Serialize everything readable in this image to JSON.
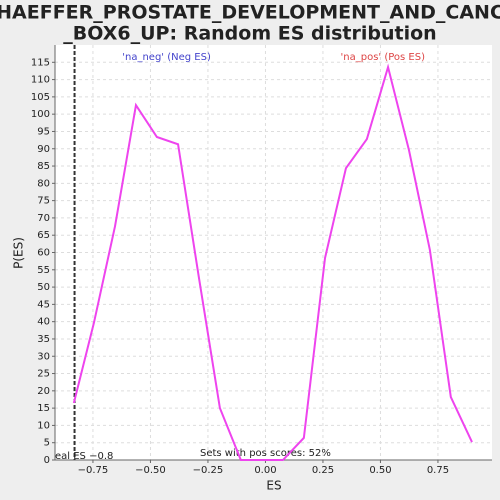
{
  "chart_data": {
    "type": "line",
    "title": [
      "SCHAEFFER_PROSTATE_DEVELOPMENT_AND_CANCER",
      "_BOX6_UP: Random ES distribution"
    ],
    "x_label": "ES",
    "y_label": "P(ES)",
    "x": [
      -0.833,
      -0.746,
      -0.654,
      -0.563,
      -0.472,
      -0.38,
      -0.289,
      -0.198,
      -0.107,
      -0.015,
      0.076,
      0.167,
      0.259,
      0.35,
      0.441,
      0.533,
      0.624,
      0.715,
      0.806,
      0.898
    ],
    "series": [
      {
        "name": "P(ES)",
        "color": "#ee44ee",
        "values": [
          16.5,
          39.6,
          67.6,
          102.6,
          93.4,
          91.3,
          52.6,
          15,
          0,
          0,
          0,
          6.4,
          58.4,
          84.4,
          92.8,
          113.6,
          89.6,
          60.7,
          18.2,
          5.2
        ]
      }
    ],
    "xlim": [
      -0.915,
      0.985
    ],
    "ylim": [
      0,
      120
    ],
    "xticks": [
      {
        "value": -0.75,
        "label": "−0.75"
      },
      {
        "value": -0.5,
        "label": "−0.50"
      },
      {
        "value": -0.25,
        "label": "−0.25"
      },
      {
        "value": 0,
        "label": "0.00"
      },
      {
        "value": 0.25,
        "label": "0.25"
      },
      {
        "value": 0.5,
        "label": "0.50"
      },
      {
        "value": 0.75,
        "label": "0.75"
      }
    ],
    "yticks": [
      0,
      5,
      10,
      15,
      20,
      25,
      30,
      35,
      40,
      45,
      50,
      55,
      60,
      65,
      70,
      75,
      80,
      85,
      90,
      95,
      100,
      105,
      110,
      115
    ],
    "grid": true,
    "real_es": {
      "value": -0.83,
      "label": "eal ES −0.8"
    },
    "annotations": [
      {
        "text": "'na_neg' (Neg ES)",
        "x": -0.43,
        "y": 116.5,
        "color": "#4444cc"
      },
      {
        "text": "'na_pos' (Pos ES)",
        "x": 0.51,
        "y": 116.5,
        "color": "#dd4444"
      },
      {
        "text": "Sets with pos scores: 52%",
        "x": 0,
        "y": 2
      }
    ]
  }
}
